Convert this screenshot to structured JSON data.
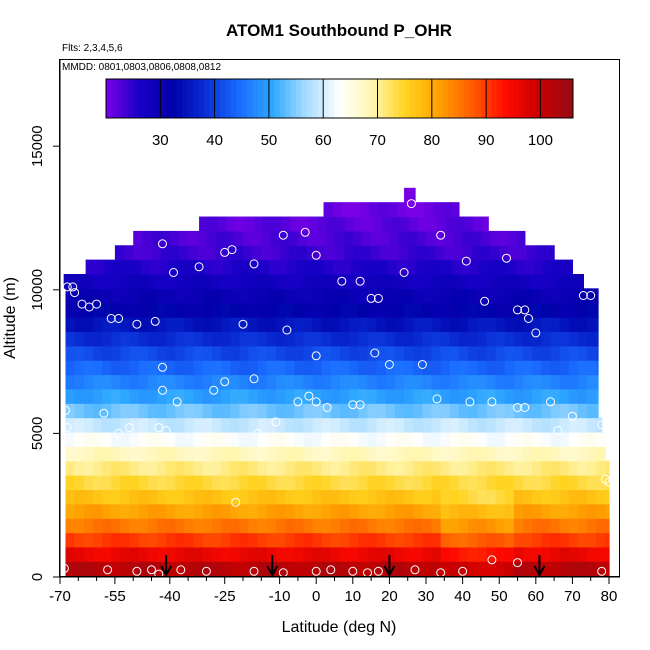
{
  "chart_data": {
    "type": "heatmap",
    "title": "ATOM1 Southbound P_OHR",
    "subtitle_flights": "Flts: 2,3,4,5,6",
    "subtitle_dates": "MMDD: 0801,0803,0806,0808,0812",
    "xlabel": "Latitude (deg N)",
    "ylabel": "Altitude (m)",
    "xlim": [
      -70,
      83
    ],
    "ylim": [
      0,
      18000
    ],
    "x_ticks": [
      -70,
      -55,
      -40,
      -25,
      -10,
      0,
      10,
      20,
      30,
      40,
      50,
      60,
      70,
      80
    ],
    "x_tick_labels": [
      "-70",
      "-55",
      "-40",
      "-25",
      "-10",
      "0",
      "10",
      "20",
      "30",
      "40",
      "50",
      "60",
      "70",
      "80"
    ],
    "x_minor_ticks": [
      -65,
      -60,
      -50,
      -45,
      -35,
      -30,
      -20,
      -15,
      -5,
      5,
      15,
      25,
      35,
      45,
      55,
      65,
      75
    ],
    "y_ticks": [
      0,
      5000,
      10000,
      15000
    ],
    "y_tick_labels": [
      "0",
      "5000",
      "10000",
      "15000"
    ],
    "colorbar": {
      "min": 20,
      "max": 106,
      "ticks": [
        30,
        40,
        50,
        60,
        70,
        80,
        90,
        100
      ],
      "tick_labels": [
        "30",
        "40",
        "50",
        "60",
        "70",
        "80",
        "90",
        "100"
      ],
      "colors": [
        "#7a00e6",
        "#1a00c8",
        "#0000a8",
        "#0a2fd6",
        "#1a6cff",
        "#2ea8ff",
        "#a8dcff",
        "#ffffff",
        "#fff6b0",
        "#ffd21e",
        "#ffa000",
        "#ff5a00",
        "#ff0a00",
        "#c80000",
        "#960a14"
      ]
    },
    "levels": [
      {
        "alt": 300,
        "value": 102
      },
      {
        "alt": 800,
        "value": 96
      },
      {
        "alt": 1300,
        "value": 90
      },
      {
        "alt": 1800,
        "value": 85
      },
      {
        "alt": 2300,
        "value": 81
      },
      {
        "alt": 2800,
        "value": 77
      },
      {
        "alt": 3300,
        "value": 74
      },
      {
        "alt": 3800,
        "value": 71
      },
      {
        "alt": 4300,
        "value": 68
      },
      {
        "alt": 4800,
        "value": 63
      },
      {
        "alt": 5300,
        "value": 59
      },
      {
        "alt": 5800,
        "value": 54
      },
      {
        "alt": 6300,
        "value": 50
      },
      {
        "alt": 6800,
        "value": 47
      },
      {
        "alt": 7300,
        "value": 44
      },
      {
        "alt": 7800,
        "value": 41
      },
      {
        "alt": 8300,
        "value": 38
      },
      {
        "alt": 8800,
        "value": 35
      },
      {
        "alt": 9300,
        "value": 32
      },
      {
        "alt": 9800,
        "value": 30
      },
      {
        "alt": 10300,
        "value": 28
      },
      {
        "alt": 10800,
        "value": 26
      },
      {
        "alt": 11300,
        "value": 24
      },
      {
        "alt": 11800,
        "value": 23
      },
      {
        "alt": 12300,
        "value": 22
      },
      {
        "alt": 12800,
        "value": 21
      },
      {
        "alt": 13300,
        "value": 21
      }
    ],
    "level_lat_extent": [
      [
        -68.5,
        80
      ],
      [
        -68.5,
        80
      ],
      [
        -68.5,
        80
      ],
      [
        -68.5,
        80
      ],
      [
        -68.5,
        80
      ],
      [
        -68.5,
        80
      ],
      [
        -68.5,
        80
      ],
      [
        -68.5,
        80
      ],
      [
        -68.5,
        79
      ],
      [
        -68.5,
        79
      ],
      [
        -68.5,
        78
      ],
      [
        -68.5,
        77
      ],
      [
        -68.5,
        77
      ],
      [
        -68.5,
        77
      ],
      [
        -68.5,
        77
      ],
      [
        -68.5,
        77
      ],
      [
        -68.5,
        77
      ],
      [
        -68.5,
        77
      ],
      [
        -68.5,
        77
      ],
      [
        -68.5,
        77
      ],
      [
        -69,
        73
      ],
      [
        -63,
        70
      ],
      [
        -55,
        65
      ],
      [
        -50,
        57
      ],
      [
        -32,
        47
      ],
      [
        2,
        39
      ],
      [
        24,
        27
      ]
    ],
    "samples": [
      {
        "lat": -68.8,
        "alt": 300
      },
      {
        "lat": -57,
        "alt": 250
      },
      {
        "lat": -49,
        "alt": 200
      },
      {
        "lat": -45,
        "alt": 250
      },
      {
        "lat": -43,
        "alt": 100
      },
      {
        "lat": -37,
        "alt": 250
      },
      {
        "lat": -30,
        "alt": 200
      },
      {
        "lat": -17,
        "alt": 200
      },
      {
        "lat": -9,
        "alt": 150
      },
      {
        "lat": 0,
        "alt": 200
      },
      {
        "lat": 4,
        "alt": 250
      },
      {
        "lat": 10,
        "alt": 200
      },
      {
        "lat": 14,
        "alt": 150
      },
      {
        "lat": 17,
        "alt": 200
      },
      {
        "lat": 27,
        "alt": 250
      },
      {
        "lat": 34,
        "alt": 150
      },
      {
        "lat": 40,
        "alt": 200
      },
      {
        "lat": 48,
        "alt": 600
      },
      {
        "lat": 55,
        "alt": 500
      },
      {
        "lat": 78,
        "alt": 200
      },
      {
        "lat": -22,
        "alt": 2600
      },
      {
        "lat": 79,
        "alt": 3400
      },
      {
        "lat": 80,
        "alt": 3300
      },
      {
        "lat": -68.5,
        "alt": 5800
      },
      {
        "lat": -68,
        "alt": 5200
      },
      {
        "lat": -58,
        "alt": 5700
      },
      {
        "lat": -51,
        "alt": 5200
      },
      {
        "lat": -54,
        "alt": 5000
      },
      {
        "lat": -43,
        "alt": 5200
      },
      {
        "lat": -41,
        "alt": 5100
      },
      {
        "lat": -38,
        "alt": 6100
      },
      {
        "lat": -34,
        "alt": 4800
      },
      {
        "lat": -28,
        "alt": 6500
      },
      {
        "lat": -25,
        "alt": 6800
      },
      {
        "lat": -17,
        "alt": 6900
      },
      {
        "lat": -16,
        "alt": 5000
      },
      {
        "lat": -11,
        "alt": 5400
      },
      {
        "lat": -5,
        "alt": 6100
      },
      {
        "lat": -2,
        "alt": 6300
      },
      {
        "lat": 0,
        "alt": 6100
      },
      {
        "lat": 3,
        "alt": 5900
      },
      {
        "lat": 10,
        "alt": 6000
      },
      {
        "lat": 12,
        "alt": 6000
      },
      {
        "lat": 16,
        "alt": 7800
      },
      {
        "lat": 20,
        "alt": 7400
      },
      {
        "lat": 29,
        "alt": 7400
      },
      {
        "lat": 33,
        "alt": 6200
      },
      {
        "lat": 42,
        "alt": 6100
      },
      {
        "lat": 48,
        "alt": 6100
      },
      {
        "lat": 55,
        "alt": 5900
      },
      {
        "lat": 57,
        "alt": 5900
      },
      {
        "lat": 64,
        "alt": 6100
      },
      {
        "lat": 66,
        "alt": 5100
      },
      {
        "lat": 70,
        "alt": 5600
      },
      {
        "lat": 78,
        "alt": 5300
      },
      {
        "lat": -42,
        "alt": 7300
      },
      {
        "lat": -42,
        "alt": 6500
      },
      {
        "lat": -8,
        "alt": 8600
      },
      {
        "lat": 0,
        "alt": 7700
      },
      {
        "lat": 60,
        "alt": 8500
      },
      {
        "lat": -68,
        "alt": 10100
      },
      {
        "lat": -66.5,
        "alt": 10100
      },
      {
        "lat": -66,
        "alt": 9900
      },
      {
        "lat": -64,
        "alt": 9500
      },
      {
        "lat": -62,
        "alt": 9400
      },
      {
        "lat": -60,
        "alt": 9500
      },
      {
        "lat": -56,
        "alt": 9000
      },
      {
        "lat": -54,
        "alt": 9000
      },
      {
        "lat": -49,
        "alt": 8800
      },
      {
        "lat": -44,
        "alt": 8900
      },
      {
        "lat": -20,
        "alt": 8800
      },
      {
        "lat": 7,
        "alt": 10300
      },
      {
        "lat": 12,
        "alt": 10300
      },
      {
        "lat": 15,
        "alt": 9700
      },
      {
        "lat": 17,
        "alt": 9700
      },
      {
        "lat": 24,
        "alt": 10600
      },
      {
        "lat": 46,
        "alt": 9600
      },
      {
        "lat": 55,
        "alt": 9300
      },
      {
        "lat": 57,
        "alt": 9300
      },
      {
        "lat": 58,
        "alt": 9000
      },
      {
        "lat": 73,
        "alt": 9800
      },
      {
        "lat": 75,
        "alt": 9800
      },
      {
        "lat": -42,
        "alt": 11600
      },
      {
        "lat": -39,
        "alt": 10600
      },
      {
        "lat": -32,
        "alt": 10800
      },
      {
        "lat": -25,
        "alt": 11300
      },
      {
        "lat": -23,
        "alt": 11400
      },
      {
        "lat": -17,
        "alt": 10900
      },
      {
        "lat": -9,
        "alt": 11900
      },
      {
        "lat": -3,
        "alt": 12000
      },
      {
        "lat": 0,
        "alt": 11200
      },
      {
        "lat": 26,
        "alt": 13000
      },
      {
        "lat": 34,
        "alt": 11900
      },
      {
        "lat": 41,
        "alt": 11000
      },
      {
        "lat": 52,
        "alt": 11100
      },
      {
        "lat": 67,
        "alt": 11300
      }
    ],
    "arrows_lat": [
      -41,
      -12,
      20,
      61
    ],
    "grid": false,
    "legend": "top"
  }
}
